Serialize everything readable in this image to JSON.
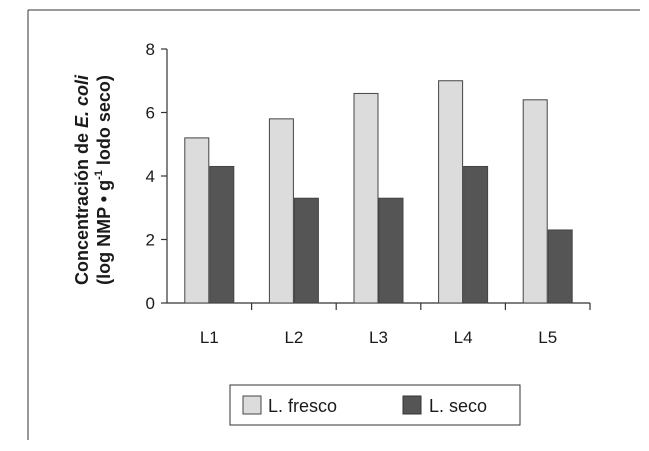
{
  "chart_data": {
    "type": "bar",
    "categories": [
      "L1",
      "L2",
      "L3",
      "L4",
      "L5"
    ],
    "series": [
      {
        "name": "L. fresco",
        "values": [
          5.2,
          5.8,
          6.6,
          7.0,
          6.4
        ],
        "color": "#dcdcdc"
      },
      {
        "name": "L. seco",
        "values": [
          4.3,
          3.3,
          3.3,
          4.3,
          2.3
        ],
        "color": "#555555"
      }
    ],
    "ylabel_line1_prefix": "Concentración de ",
    "ylabel_line1_italic": "E. coli",
    "ylabel_line2_before": "(log NMP • g",
    "ylabel_line2_sup": "-1",
    "ylabel_line2_after": " lodo seco)",
    "ylim": [
      0,
      8
    ],
    "yticks": [
      0,
      2,
      4,
      6,
      8
    ],
    "grid": false,
    "legend_position": "bottom-center"
  }
}
